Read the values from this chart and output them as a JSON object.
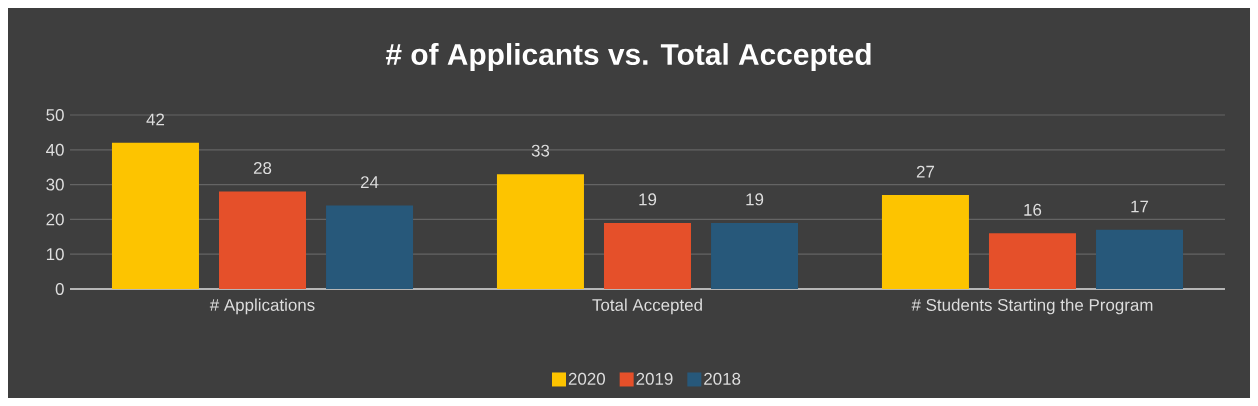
{
  "chart_data": {
    "type": "bar",
    "title": "# of Applicants vs. Total Accepted",
    "categories": [
      "# Applications",
      "Total Accepted",
      "# Students Starting the Program"
    ],
    "series": [
      {
        "name": "2020",
        "color": "#fdc400",
        "values": [
          42,
          33,
          27
        ]
      },
      {
        "name": "2019",
        "color": "#e5502a",
        "values": [
          28,
          19,
          16
        ]
      },
      {
        "name": "2018",
        "color": "#27587a",
        "values": [
          24,
          19,
          17
        ]
      }
    ],
    "ylim": [
      0,
      50
    ],
    "yticks": [
      0,
      10,
      20,
      30,
      40,
      50
    ],
    "grid": "y",
    "legend": "bottom",
    "data_labels": true
  }
}
